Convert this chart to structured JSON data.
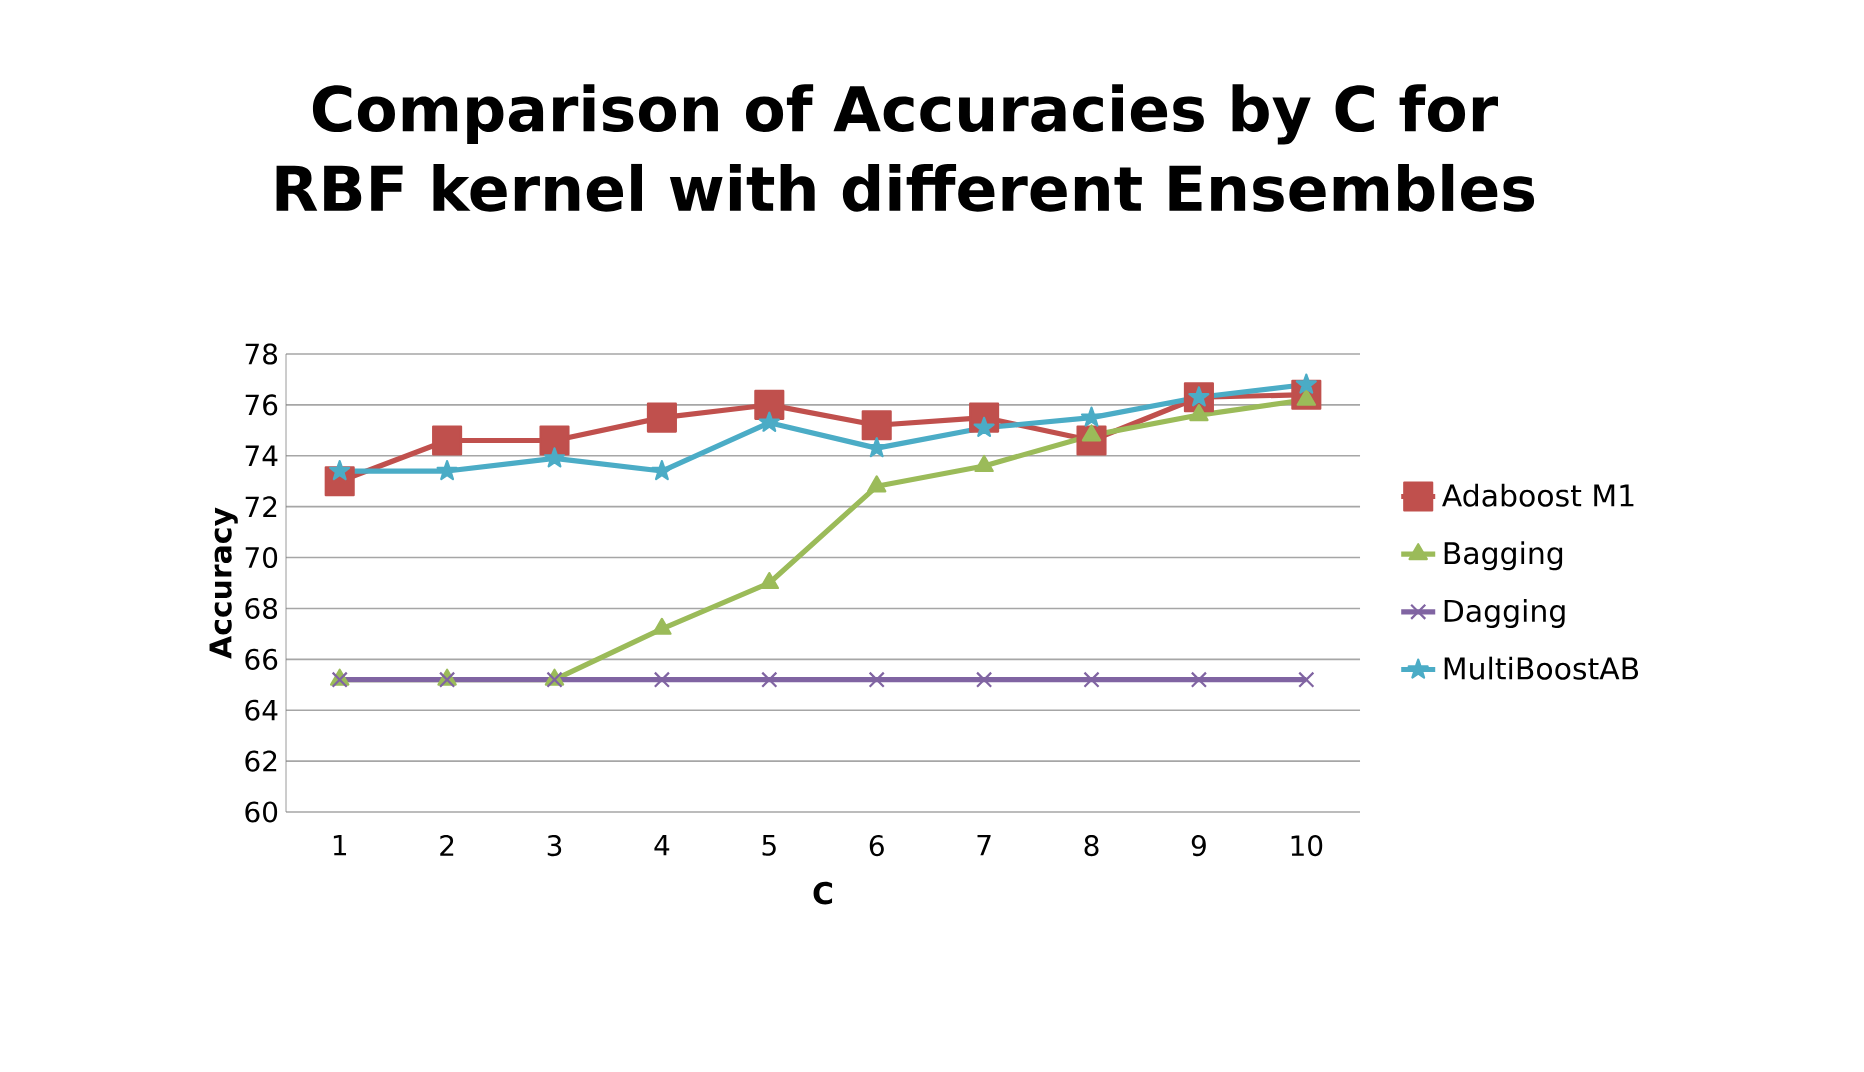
{
  "chart_data": {
    "type": "line",
    "title": "Comparison of Accuracies by C for RBF kernel with different Ensembles",
    "xlabel": "C",
    "ylabel": "Accuracy",
    "categories": [
      "1",
      "2",
      "3",
      "4",
      "5",
      "6",
      "7",
      "8",
      "9",
      "10"
    ],
    "series": [
      {
        "name": "Adaboost M1",
        "color": "#c0504d",
        "marker": "square",
        "values": [
          73.0,
          74.6,
          74.6,
          75.5,
          76.0,
          75.2,
          75.5,
          74.6,
          76.3,
          76.4
        ]
      },
      {
        "name": "Bagging",
        "color": "#9bbb59",
        "marker": "triangle",
        "values": [
          65.2,
          65.2,
          65.2,
          67.2,
          69.0,
          72.8,
          73.6,
          74.8,
          75.6,
          76.2
        ]
      },
      {
        "name": "Dagging",
        "color": "#8064a2",
        "marker": "cross",
        "values": [
          65.2,
          65.2,
          65.2,
          65.2,
          65.2,
          65.2,
          65.2,
          65.2,
          65.2,
          65.2
        ]
      },
      {
        "name": "MultiBoostAB",
        "color": "#4bacc6",
        "marker": "star",
        "values": [
          73.4,
          73.4,
          73.9,
          73.4,
          75.3,
          74.3,
          75.1,
          75.5,
          76.3,
          76.8
        ]
      }
    ],
    "ylim": [
      60,
      78
    ],
    "yticks": [
      60,
      62,
      64,
      66,
      68,
      70,
      72,
      74,
      76,
      78
    ],
    "grid": "y",
    "legend": "right"
  }
}
